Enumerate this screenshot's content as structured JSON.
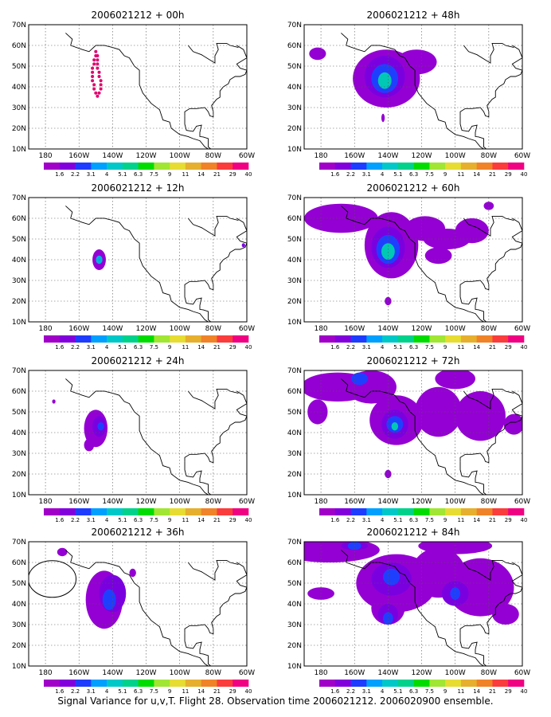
{
  "figure": {
    "caption": "Signal Variance for u,v,T. Flight 28. Observation time 2006021212. 2006020900 ensemble."
  },
  "colorbar": {
    "labels": [
      "1.6",
      "2.2",
      "3.1",
      "4",
      "5.1",
      "6.3",
      "7.5",
      "9",
      "11",
      "14",
      "21",
      "29",
      "40"
    ],
    "colors": [
      "#a000c8",
      "#8200dc",
      "#1e3cff",
      "#00a0ff",
      "#00c8c8",
      "#00d28c",
      "#00dc00",
      "#a0e632",
      "#e6dc32",
      "#e6af2d",
      "#f08228",
      "#fa3c3c",
      "#f00082"
    ]
  },
  "chart_data": [
    {
      "type": "heatmap",
      "title": "2006021212 + 00h",
      "lead_hours": 0,
      "x_ticks": [
        "180",
        "160W",
        "140W",
        "120W",
        "100W",
        "80W",
        "60W"
      ],
      "y_ticks": [
        "10N",
        "20N",
        "30N",
        "40N",
        "50N",
        "60N",
        "70N"
      ],
      "lon_range": [
        -190,
        -60
      ],
      "lat_range": [
        10,
        70
      ],
      "dots": [
        [
          -150,
          57
        ],
        [
          -149,
          55
        ],
        [
          -149,
          53
        ],
        [
          -149,
          51
        ],
        [
          -149,
          49
        ],
        [
          -148,
          47
        ],
        [
          -148,
          45
        ],
        [
          -147,
          43
        ],
        [
          -147,
          41
        ],
        [
          -147,
          39
        ],
        [
          -148,
          37
        ],
        [
          -149,
          35.5
        ],
        [
          -150,
          37
        ],
        [
          -151,
          39
        ],
        [
          -151,
          41
        ],
        [
          -152,
          43
        ],
        [
          -152,
          45
        ],
        [
          -152,
          47
        ],
        [
          -152,
          49
        ],
        [
          -151,
          51
        ],
        [
          -151,
          53
        ],
        [
          -150,
          55
        ]
      ],
      "blobs": []
    },
    {
      "type": "heatmap",
      "title": "2006021212 + 48h",
      "lead_hours": 48,
      "x_ticks": [
        "180",
        "160W",
        "140W",
        "120W",
        "100W",
        "80W",
        "60W"
      ],
      "y_ticks": [
        "10N",
        "20N",
        "30N",
        "40N",
        "50N",
        "60N",
        "70N"
      ],
      "lon_range": [
        -190,
        -60
      ],
      "lat_range": [
        10,
        70
      ],
      "blobs": [
        {
          "lon": -141,
          "lat": 44,
          "rlon": 20,
          "rlat": 14,
          "level": 0
        },
        {
          "lon": -123,
          "lat": 52,
          "rlon": 12,
          "rlat": 6,
          "level": 0
        },
        {
          "lon": -182,
          "lat": 56,
          "rlon": 5,
          "rlat": 3,
          "level": 0
        },
        {
          "lon": -143,
          "lat": 25,
          "rlon": 1,
          "rlat": 2,
          "level": 0
        },
        {
          "lon": -142,
          "lat": 45,
          "rlon": 12,
          "rlat": 10,
          "level": 1
        },
        {
          "lon": -142,
          "lat": 44,
          "rlon": 8,
          "rlat": 7,
          "level": 2
        },
        {
          "lon": -142,
          "lat": 43,
          "rlon": 4,
          "rlat": 4,
          "level": 4
        }
      ]
    },
    {
      "type": "heatmap",
      "title": "2006021212 + 12h",
      "lead_hours": 12,
      "x_ticks": [
        "180",
        "160W",
        "140W",
        "120W",
        "100W",
        "80W",
        "60W"
      ],
      "y_ticks": [
        "10N",
        "20N",
        "30N",
        "40N",
        "50N",
        "60N",
        "70N"
      ],
      "lon_range": [
        -190,
        -60
      ],
      "lat_range": [
        10,
        70
      ],
      "blobs": [
        {
          "lon": -148,
          "lat": 40,
          "rlon": 4,
          "rlat": 5,
          "level": 0
        },
        {
          "lon": -148,
          "lat": 40,
          "rlon": 2,
          "rlat": 2,
          "level": 3
        },
        {
          "lon": -62,
          "lat": 47,
          "rlon": 1,
          "rlat": 1,
          "level": 1
        }
      ]
    },
    {
      "type": "heatmap",
      "title": "2006021212 + 60h",
      "lead_hours": 60,
      "x_ticks": [
        "180",
        "160W",
        "140W",
        "120W",
        "100W",
        "80W",
        "60W"
      ],
      "y_ticks": [
        "10N",
        "20N",
        "30N",
        "40N",
        "50N",
        "60N",
        "70N"
      ],
      "lon_range": [
        -190,
        -60
      ],
      "lat_range": [
        10,
        70
      ],
      "blobs": [
        {
          "lon": -168,
          "lat": 60,
          "rlon": 22,
          "rlat": 7,
          "level": 0
        },
        {
          "lon": -138,
          "lat": 47,
          "rlon": 16,
          "rlat": 16,
          "level": 0
        },
        {
          "lon": -118,
          "lat": 55,
          "rlon": 12,
          "rlat": 6,
          "level": 0
        },
        {
          "lon": -105,
          "lat": 50,
          "rlon": 14,
          "rlat": 5,
          "level": 0
        },
        {
          "lon": -90,
          "lat": 54,
          "rlon": 10,
          "rlat": 6,
          "level": 0
        },
        {
          "lon": -110,
          "lat": 42,
          "rlon": 8,
          "rlat": 4,
          "level": 0
        },
        {
          "lon": -80,
          "lat": 66,
          "rlon": 3,
          "rlat": 2,
          "level": 0
        },
        {
          "lon": -140,
          "lat": 20,
          "rlon": 2,
          "rlat": 2,
          "level": 0
        },
        {
          "lon": -140,
          "lat": 46,
          "rlon": 10,
          "rlat": 10,
          "level": 1
        },
        {
          "lon": -140,
          "lat": 45,
          "rlon": 7,
          "rlat": 7,
          "level": 2
        },
        {
          "lon": -140,
          "lat": 44,
          "rlon": 4,
          "rlat": 4,
          "level": 4
        }
      ]
    },
    {
      "type": "heatmap",
      "title": "2006021212 + 24h",
      "lead_hours": 24,
      "x_ticks": [
        "180",
        "160W",
        "140W",
        "120W",
        "100W",
        "80W",
        "60W"
      ],
      "y_ticks": [
        "10N",
        "20N",
        "30N",
        "40N",
        "50N",
        "60N",
        "70N"
      ],
      "lon_range": [
        -190,
        -60
      ],
      "lat_range": [
        10,
        70
      ],
      "blobs": [
        {
          "lon": -150,
          "lat": 42,
          "rlon": 7,
          "rlat": 9,
          "level": 0
        },
        {
          "lon": -154,
          "lat": 34,
          "rlon": 3,
          "rlat": 3,
          "level": 0
        },
        {
          "lon": -175,
          "lat": 55,
          "rlon": 1,
          "rlat": 1,
          "level": 0
        },
        {
          "lon": -148,
          "lat": 43,
          "rlon": 4,
          "rlat": 5,
          "level": 1
        },
        {
          "lon": -147,
          "lat": 43,
          "rlon": 2,
          "rlat": 2,
          "level": 2
        }
      ]
    },
    {
      "type": "heatmap",
      "title": "2006021212 + 72h",
      "lead_hours": 72,
      "x_ticks": [
        "180",
        "160W",
        "140W",
        "120W",
        "100W",
        "80W",
        "60W"
      ],
      "y_ticks": [
        "10N",
        "20N",
        "30N",
        "40N",
        "50N",
        "60N",
        "70N"
      ],
      "lon_range": [
        -190,
        -60
      ],
      "lat_range": [
        10,
        70
      ],
      "blobs": [
        {
          "lon": -170,
          "lat": 62,
          "rlon": 22,
          "rlat": 7,
          "level": 0
        },
        {
          "lon": -135,
          "lat": 46,
          "rlon": 16,
          "rlat": 12,
          "level": 0
        },
        {
          "lon": -150,
          "lat": 62,
          "rlon": 15,
          "rlat": 8,
          "level": 0
        },
        {
          "lon": -110,
          "lat": 50,
          "rlon": 14,
          "rlat": 12,
          "level": 0
        },
        {
          "lon": -85,
          "lat": 48,
          "rlon": 15,
          "rlat": 12,
          "level": 0
        },
        {
          "lon": -65,
          "lat": 44,
          "rlon": 6,
          "rlat": 5,
          "level": 0
        },
        {
          "lon": -100,
          "lat": 66,
          "rlon": 12,
          "rlat": 5,
          "level": 0
        },
        {
          "lon": -182,
          "lat": 50,
          "rlon": 6,
          "rlat": 6,
          "level": 0
        },
        {
          "lon": -140,
          "lat": 20,
          "rlon": 2,
          "rlat": 2,
          "level": 0
        },
        {
          "lon": -136,
          "lat": 44,
          "rlon": 8,
          "rlat": 7,
          "level": 1
        },
        {
          "lon": -136,
          "lat": 44,
          "rlon": 5,
          "rlat": 4,
          "level": 2
        },
        {
          "lon": -157,
          "lat": 66,
          "rlon": 5,
          "rlat": 3,
          "level": 2
        },
        {
          "lon": -136,
          "lat": 43,
          "rlon": 2,
          "rlat": 2,
          "level": 4
        }
      ]
    },
    {
      "type": "heatmap",
      "title": "2006021212 + 36h",
      "lead_hours": 36,
      "x_ticks": [
        "180",
        "160W",
        "140W",
        "120W",
        "100W",
        "80W",
        "60W"
      ],
      "y_ticks": [
        "10N",
        "20N",
        "30N",
        "40N",
        "50N",
        "60N",
        "70N"
      ],
      "lon_range": [
        -190,
        -60
      ],
      "lat_range": [
        10,
        70
      ],
      "blobs": [
        {
          "lon": -145,
          "lat": 42,
          "rlon": 11,
          "rlat": 14,
          "level": 0
        },
        {
          "lon": -170,
          "lat": 65,
          "rlon": 3,
          "rlat": 2,
          "level": 0
        },
        {
          "lon": -128,
          "lat": 55,
          "rlon": 2,
          "rlat": 2,
          "level": 0
        },
        {
          "lon": -140,
          "lat": 45,
          "rlon": 8,
          "rlat": 9,
          "level": 1
        },
        {
          "lon": -142,
          "lat": 42,
          "rlon": 4,
          "rlat": 5,
          "level": 2
        }
      ]
    },
    {
      "type": "heatmap",
      "title": "2006021212 + 84h",
      "lead_hours": 84,
      "x_ticks": [
        "180",
        "160W",
        "140W",
        "120W",
        "100W",
        "80W",
        "60W"
      ],
      "y_ticks": [
        "10N",
        "20N",
        "30N",
        "40N",
        "50N",
        "60N",
        "70N"
      ],
      "lon_range": [
        -190,
        -60
      ],
      "lat_range": [
        10,
        70
      ],
      "blobs": [
        {
          "lon": -175,
          "lat": 66,
          "rlon": 30,
          "rlat": 6,
          "level": 0
        },
        {
          "lon": -135,
          "lat": 50,
          "rlon": 24,
          "rlat": 14,
          "level": 0
        },
        {
          "lon": -110,
          "lat": 55,
          "rlon": 16,
          "rlat": 12,
          "level": 0
        },
        {
          "lon": -85,
          "lat": 48,
          "rlon": 20,
          "rlat": 14,
          "level": 0
        },
        {
          "lon": -100,
          "lat": 68,
          "rlon": 22,
          "rlat": 4,
          "level": 0
        },
        {
          "lon": -180,
          "lat": 45,
          "rlon": 8,
          "rlat": 3,
          "level": 0
        },
        {
          "lon": -140,
          "lat": 38,
          "rlon": 10,
          "rlat": 8,
          "level": 0
        },
        {
          "lon": -70,
          "lat": 35,
          "rlon": 8,
          "rlat": 5,
          "level": 0
        },
        {
          "lon": -160,
          "lat": 68,
          "rlon": 8,
          "rlat": 2,
          "level": 1
        },
        {
          "lon": -138,
          "lat": 52,
          "rlon": 12,
          "rlat": 8,
          "level": 1
        },
        {
          "lon": -100,
          "lat": 45,
          "rlon": 8,
          "rlat": 6,
          "level": 1
        },
        {
          "lon": -140,
          "lat": 35,
          "rlon": 6,
          "rlat": 5,
          "level": 1
        },
        {
          "lon": -160,
          "lat": 68,
          "rlon": 4,
          "rlat": 2,
          "level": 2
        },
        {
          "lon": -138,
          "lat": 53,
          "rlon": 5,
          "rlat": 4,
          "level": 2
        },
        {
          "lon": -140,
          "lat": 33,
          "rlon": 3,
          "rlat": 3,
          "level": 2
        },
        {
          "lon": -100,
          "lat": 45,
          "rlon": 3,
          "rlat": 3,
          "level": 2
        }
      ]
    }
  ]
}
